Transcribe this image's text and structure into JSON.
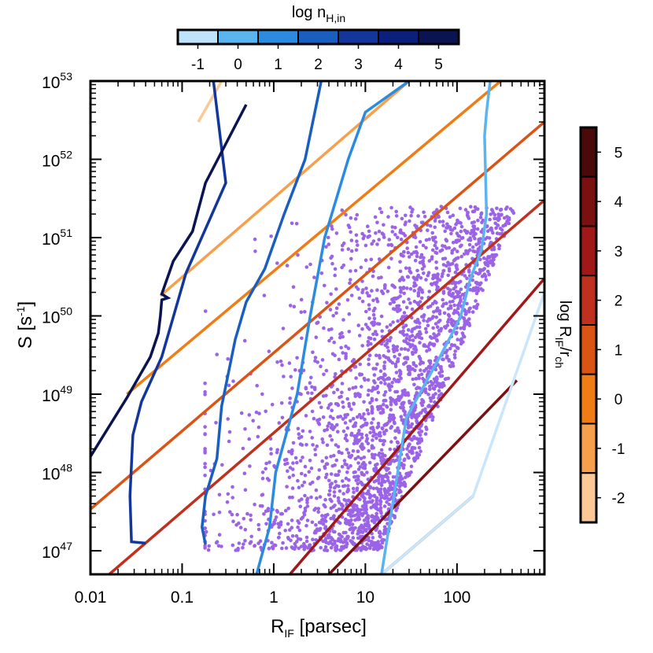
{
  "chart_data": {
    "type": "line",
    "x_axis": {
      "label": "R",
      "label_sub": "IF",
      "label_rest": " [parsec]",
      "scale": "log",
      "range": [
        0.01,
        900
      ],
      "ticks": [
        0.01,
        0.1,
        1,
        10,
        100
      ],
      "tick_labels": [
        "0.01",
        "0.1",
        "1",
        "10",
        "100"
      ]
    },
    "y_axis": {
      "label": "S [s",
      "label_sup": "-1",
      "label_rest": "]",
      "scale": "log",
      "range": [
        5e+46,
        1e+53
      ],
      "tick_exponents": [
        47,
        48,
        49,
        50,
        51,
        52,
        53
      ],
      "tick_base": "10"
    },
    "grid": false,
    "top_colorbar": {
      "title": "log n",
      "title_sub": "H,in",
      "labels": [
        "-1",
        "0",
        "1",
        "2",
        "3",
        "4",
        "5"
      ],
      "colors": [
        "#bfe3fb",
        "#5ab4f0",
        "#2b8be0",
        "#1a5fc0",
        "#12369c",
        "#0b1f7c",
        "#0a1452"
      ]
    },
    "right_colorbar": {
      "title": "log R",
      "title_sub1": "IF",
      "title_mid": "/r",
      "title_sub2": "ch",
      "labels": [
        "5",
        "4",
        "3",
        "2",
        "1",
        "0",
        "-1",
        "-2"
      ],
      "colors": [
        "#4a0a0a",
        "#7a1010",
        "#a01818",
        "#c0301e",
        "#da5414",
        "#f07c16",
        "#f6a04e",
        "#fcc896"
      ]
    },
    "density_series": [
      {
        "name": "-1",
        "color": "#c9e6fa",
        "points": [
          [
            15,
            5e+46
          ],
          [
            150,
            5e+47
          ],
          [
            900,
            2e+50
          ]
        ]
      },
      {
        "name": "0",
        "color": "#5ab4f0",
        "points": [
          [
            15,
            5e+46
          ],
          [
            28,
            5e+48
          ],
          [
            65,
            3e+49
          ],
          [
            95,
            7e+49
          ],
          [
            110,
            1e+50
          ],
          [
            140,
            3e+50
          ],
          [
            185,
            7e+50
          ],
          [
            210,
            2e+51
          ],
          [
            205,
            6e+51
          ],
          [
            200,
            2e+52
          ],
          [
            210,
            4e+52
          ],
          [
            230,
            1e+53
          ]
        ]
      },
      {
        "name": "1",
        "color": "#2b8be0",
        "points": [
          [
            0.65,
            5e+46
          ],
          [
            0.9,
            2e+47
          ],
          [
            1.05,
            1e+48
          ],
          [
            1.8,
            1e+49
          ],
          [
            2.5,
            1e+50
          ],
          [
            3.6,
            1e+51
          ],
          [
            6.5,
            1e+52
          ],
          [
            10,
            4e+52
          ],
          [
            30,
            1e+53
          ]
        ]
      },
      {
        "name": "2",
        "color": "#1a5fc0",
        "points": [
          [
            0.18,
            1.2e+47
          ],
          [
            0.165,
            2e+47
          ],
          [
            0.18,
            5e+47
          ],
          [
            0.24,
            1.5e+48
          ],
          [
            0.27,
            7e+48
          ],
          [
            0.38,
            5e+49
          ],
          [
            0.5,
            1.5e+50
          ],
          [
            0.8,
            4e+50
          ],
          [
            1.3,
            2e+51
          ],
          [
            2.2,
            1e+52
          ],
          [
            3.3,
            1e+53
          ]
        ]
      },
      {
        "name": "3",
        "color": "#12369c",
        "points": [
          [
            0.04,
            1.25e+47
          ],
          [
            0.028,
            1.3e+47
          ],
          [
            0.027,
            5e+47
          ],
          [
            0.029,
            3e+48
          ],
          [
            0.036,
            8e+48
          ],
          [
            0.06,
            3e+49
          ],
          [
            0.11,
            3.5e+50
          ],
          [
            0.3,
            5e+51
          ],
          [
            0.22,
            1e+53
          ]
        ]
      },
      {
        "name": "4",
        "color": "#0a1452",
        "points": [
          [
            0.01,
            1.6e+48
          ],
          [
            0.025,
            9e+48
          ],
          [
            0.045,
            3e+49
          ],
          [
            0.055,
            6e+49
          ],
          [
            0.058,
            1e+50
          ],
          [
            0.06,
            1.6e+50
          ],
          [
            0.07,
            1.7e+50
          ],
          [
            0.06,
            1.9e+50
          ],
          [
            0.08,
            5e+50
          ],
          [
            0.13,
            1.2e+51
          ],
          [
            0.18,
            5e+51
          ],
          [
            0.5,
            5e+52
          ]
        ]
      }
    ],
    "ratio_series": [
      {
        "name": "5",
        "color": "#4a0a0a",
        "points": [
          [
            15,
            5e+46
          ],
          [
            150,
            5e+47
          ]
        ]
      },
      {
        "name": "4",
        "color": "#7a1010",
        "points": [
          [
            4,
            5e+46
          ],
          [
            450,
            1.5e+49
          ]
        ]
      },
      {
        "name": "3",
        "color": "#a01818",
        "points": [
          [
            1.5,
            5e+46
          ],
          [
            900,
            3e+50
          ]
        ]
      },
      {
        "name": "2",
        "color": "#c0301e",
        "points": [
          [
            0.016,
            5e+46
          ],
          [
            900,
            3e+51
          ]
        ]
      },
      {
        "name": "1",
        "color": "#da5414",
        "points": [
          [
            0.01,
            3.4e+47
          ],
          [
            900,
            3e+52
          ]
        ]
      },
      {
        "name": "0",
        "color": "#f07c16",
        "points": [
          [
            0.025,
            1e+49
          ],
          [
            300,
            1e+53
          ]
        ]
      },
      {
        "name": "-1",
        "color": "#f6a04e",
        "points": [
          [
            0.058,
            1.8e+50
          ],
          [
            30,
            1e+53
          ]
        ]
      },
      {
        "name": "-2",
        "color": "#fcc896",
        "points": [
          [
            0.15,
            3e+52
          ],
          [
            0.27,
            1e+53
          ]
        ]
      }
    ],
    "scatter": {
      "color": "#9b63e6",
      "count": 2600,
      "description_points": "dense cloud between R_IF ~0.2 and ~150 pc, S ~1e47 to ~3e51 s^-1",
      "x_range": [
        0.2,
        150
      ],
      "y_range": [
        1e+47,
        3e+51
      ]
    }
  }
}
